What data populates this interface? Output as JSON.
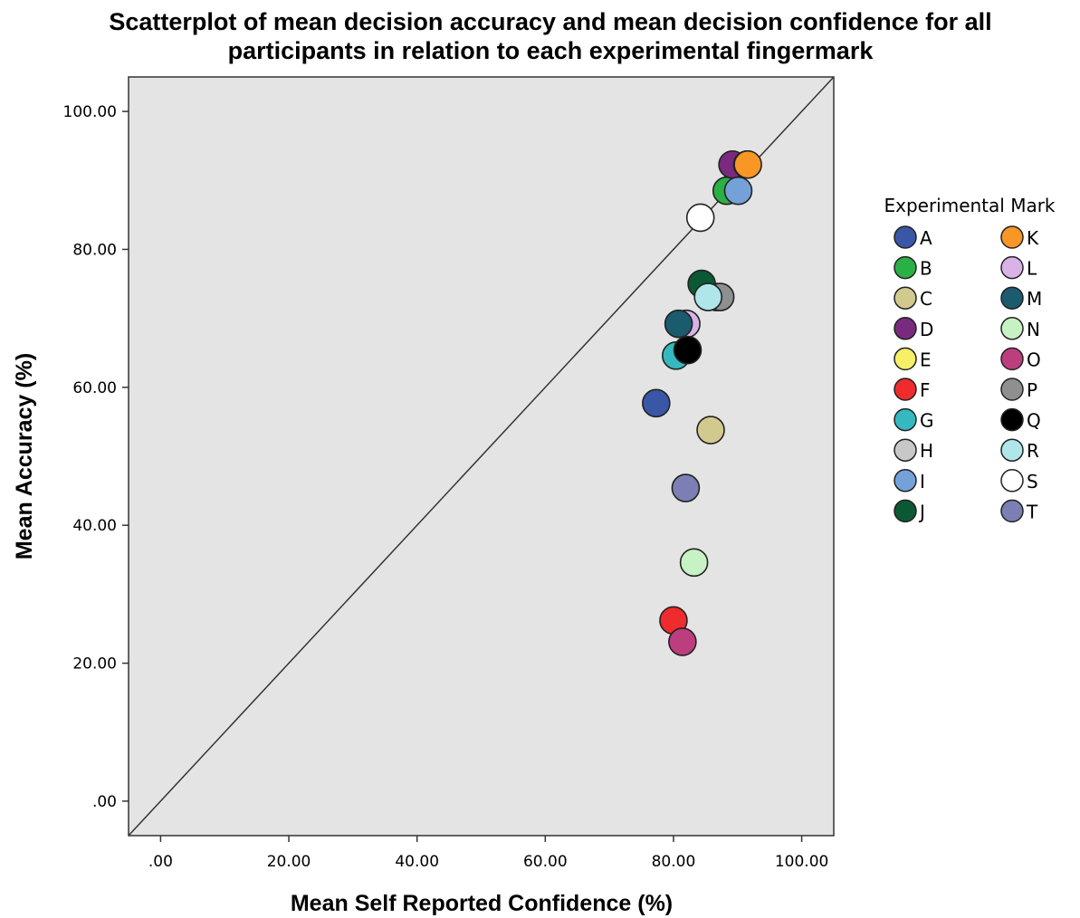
{
  "chart_data": {
    "type": "scatter",
    "title_lines": [
      "Scatterplot of mean decision accuracy and mean decision confidence for all",
      "participants in relation to each experimental fingermark"
    ],
    "xlabel": "Mean Self Reported Confidence (%)",
    "ylabel": "Mean Accuracy (%)",
    "xlim": [
      -5,
      105
    ],
    "ylim": [
      -5,
      105
    ],
    "x_ticks": [
      0,
      20,
      40,
      60,
      80,
      100
    ],
    "y_ticks": [
      0,
      20,
      40,
      60,
      80,
      100
    ],
    "x_tick_labels": [
      ".00",
      "20.00",
      "40.00",
      "60.00",
      "80.00",
      "100.00"
    ],
    "y_tick_labels": [
      ".00",
      "20.00",
      "40.00",
      "60.00",
      "80.00",
      "100.00"
    ],
    "grid": false,
    "reference_line": "y = x",
    "legend": {
      "title": "Experimental Mark",
      "placement": "right"
    },
    "series": [
      {
        "name": "A",
        "color": "#3a56a6",
        "x": 77.3,
        "y": 57.7
      },
      {
        "name": "B",
        "color": "#2bb045",
        "x": 88.3,
        "y": 88.5
      },
      {
        "name": "C",
        "color": "#d2c98f",
        "x": 85.8,
        "y": 53.8
      },
      {
        "name": "D",
        "color": "#7a2a7e",
        "x": 89.2,
        "y": 92.3
      },
      {
        "name": "E",
        "color": "#f5f066",
        "x": 91.5,
        "y": 92.3
      },
      {
        "name": "F",
        "color": "#ef2b2d",
        "x": 80.0,
        "y": 26.2
      },
      {
        "name": "G",
        "color": "#35b8c0",
        "x": 80.4,
        "y": 64.6
      },
      {
        "name": "H",
        "color": "#c8c8c8",
        "x": 86.7,
        "y": 73.1
      },
      {
        "name": "I",
        "color": "#74a1d8",
        "x": 90.1,
        "y": 88.5
      },
      {
        "name": "J",
        "color": "#0b5934",
        "x": 84.4,
        "y": 75.0
      },
      {
        "name": "K",
        "color": "#f89626",
        "x": 91.6,
        "y": 92.3
      },
      {
        "name": "L",
        "color": "#d9b3e6",
        "x": 82.0,
        "y": 69.2
      },
      {
        "name": "M",
        "color": "#1b5b6e",
        "x": 80.8,
        "y": 69.2
      },
      {
        "name": "N",
        "color": "#c7f2c4",
        "x": 83.2,
        "y": 34.6
      },
      {
        "name": "O",
        "color": "#bd3e7f",
        "x": 81.4,
        "y": 23.1
      },
      {
        "name": "P",
        "color": "#8f8f8f",
        "x": 87.3,
        "y": 73.1
      },
      {
        "name": "Q",
        "color": "#000000",
        "x": 82.2,
        "y": 65.4
      },
      {
        "name": "R",
        "color": "#aee6ea",
        "x": 85.4,
        "y": 73.1
      },
      {
        "name": "S",
        "color": "#ffffff",
        "x": 84.2,
        "y": 84.6
      },
      {
        "name": "T",
        "color": "#7b7fb3",
        "x": 81.9,
        "y": 45.4
      }
    ]
  }
}
